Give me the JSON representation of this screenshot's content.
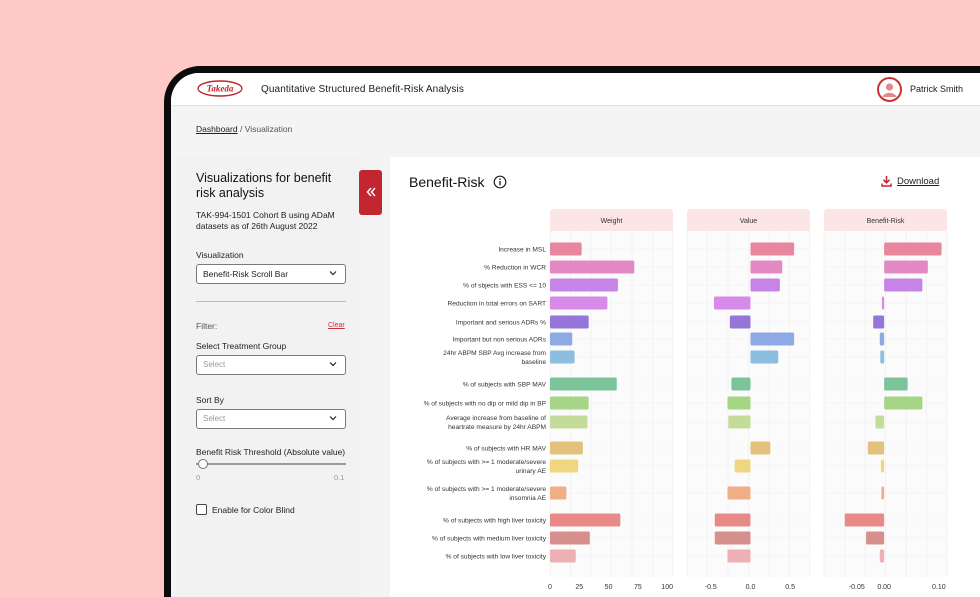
{
  "app": {
    "logo_text": "Takeda",
    "title": "Quantitative Structured Benefit-Risk Analysis",
    "user": "Patrick Smith"
  },
  "breadcrumb": {
    "root": "Dashboard",
    "separator": "/",
    "current": "Visualization"
  },
  "sidebar": {
    "title": "Visualizations for benefit risk analysis",
    "description": "TAK-994-1501 Cohort B using ADaM datasets as of 26th August 2022",
    "visualization_label": "Visualization",
    "visualization_value": "Benefit-Risk Scroll Bar",
    "filter_label": "Filter:",
    "clear_label": "Clear",
    "treatment_label": "Select Treatment Group",
    "treatment_placeholder": "Select",
    "sort_label": "Sort By",
    "sort_placeholder": "Select",
    "threshold_label": "Benefit Risk Threshold (Absolute value)",
    "threshold_min": "0",
    "threshold_max": "0.1",
    "threshold_value": 0.002,
    "colorblind_label": "Enable for Color Blind",
    "colorblind_checked": false,
    "collapse_icon": "double-chevron-left-icon"
  },
  "panel": {
    "title": "Benefit-Risk",
    "download_label": "Download",
    "accent": "#c2262e"
  },
  "chart_data": {
    "type": "bar",
    "orientation": "horizontal",
    "rows": [
      {
        "label": [
          "Increase in MSL"
        ],
        "color": "#e7869c",
        "weight": 27,
        "value": 0.55,
        "br": 0.105
      },
      {
        "label": [
          "% Reduction in WCR"
        ],
        "color": "#e38ac5",
        "weight": 72,
        "value": 0.4,
        "br": 0.08
      },
      {
        "label": [
          "% of sbjects with ESS <= 10"
        ],
        "color": "#c685e6",
        "weight": 58,
        "value": 0.37,
        "br": 0.07
      },
      {
        "label": [
          "Reduction in total errors on SART"
        ],
        "color": "#d78ae8",
        "weight": 49,
        "value": -0.46,
        "br": -0.004
      },
      {
        "label": [
          "Important and serious ADRs %"
        ],
        "color": "#9476d8",
        "weight": 33,
        "value": -0.26,
        "br": -0.02
      },
      {
        "label": [
          "Important but non serious ADRs"
        ],
        "color": "#8eaae4",
        "weight": 19,
        "value": 0.55,
        "br": -0.008
      },
      {
        "label": [
          "24hr ABPM SBP Avg increase from",
          "baseline"
        ],
        "color": "#8dbedf",
        "weight": 21,
        "value": 0.35,
        "br": -0.007
      },
      {
        "label": [
          "% of subjects with SBP MAV"
        ],
        "color": "#7bc49a",
        "weight": 57,
        "value": -0.24,
        "br": 0.043
      },
      {
        "label": [
          "% of subjects with no dip or mild dip in BP"
        ],
        "color": "#a6d585",
        "weight": 33,
        "value": -0.29,
        "br": 0.07
      },
      {
        "label": [
          "Average increase from baseline of",
          "heartrate measure by 24hr ABPM"
        ],
        "color": "#c4dc9a",
        "weight": 32,
        "value": -0.28,
        "br": -0.016
      },
      {
        "label": [
          "% of subjects with HR MAV"
        ],
        "color": "#e3c27d",
        "weight": 28,
        "value": 0.25,
        "br": -0.03
      },
      {
        "label": [
          "% of subjects with >= 1 moderate/severe",
          "urinary AE"
        ],
        "color": "#f0d77f",
        "weight": 24,
        "value": -0.2,
        "br": -0.006
      },
      {
        "label": [
          "% of subjects with >= 1 moderate/severe",
          "insomnia AE"
        ],
        "color": "#f0ae86",
        "weight": 14,
        "value": -0.29,
        "br": -0.005
      },
      {
        "label": [
          "% of subjects with high liver toxicity"
        ],
        "color": "#e88a87",
        "weight": 60,
        "value": -0.45,
        "br": -0.072
      },
      {
        "label": [
          "% of subjects with medium liver toxicity"
        ],
        "color": "#d78f8e",
        "weight": 34,
        "value": -0.45,
        "br": -0.033
      },
      {
        "label": [
          "% of subjects with low liver toxicity"
        ],
        "color": "#efb0b4",
        "weight": 22,
        "value": -0.29,
        "br": -0.008
      }
    ],
    "panels": [
      {
        "title": "Weight",
        "xlabel": "Weights",
        "key": "weight",
        "xlim": [
          0,
          105
        ],
        "ticks": [
          0,
          25,
          50,
          75,
          100
        ],
        "tick_labels": [
          "0",
          "25",
          "50",
          "75",
          "100"
        ]
      },
      {
        "title": "Value",
        "xlabel": "Value",
        "key": "value",
        "xlim": [
          -0.8,
          0.75
        ],
        "ticks": [
          -0.5,
          0,
          0.5
        ],
        "tick_labels": [
          "-0.5",
          "0.0",
          "0.5"
        ]
      },
      {
        "title": "Benefit-Risk",
        "xlabel": "Benefit-Risk",
        "key": "br",
        "xlim": [
          -0.11,
          0.115
        ],
        "ticks": [
          -0.05,
          0,
          0.1
        ],
        "tick_labels": [
          "-0.05",
          "0.00",
          "0.10"
        ]
      }
    ],
    "grid": true,
    "legend": "none"
  }
}
